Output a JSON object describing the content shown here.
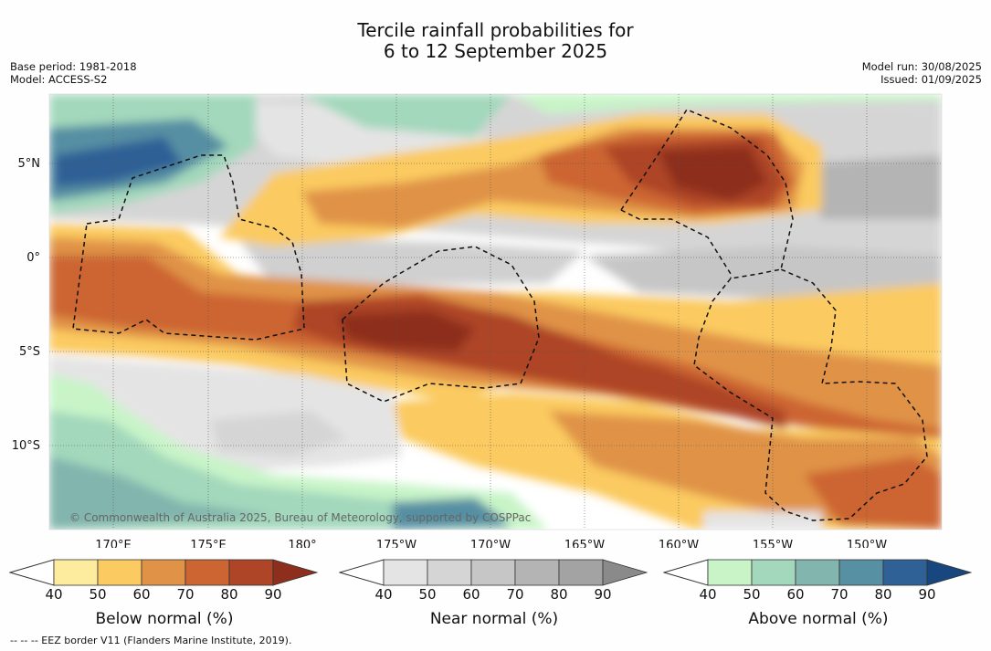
{
  "title": {
    "line1": "Tercile rainfall probabilities for",
    "line2": "6 to 12 September 2025"
  },
  "meta_left": {
    "base_period": "Base period: 1981-2018",
    "model": "Model: ACCESS-S2"
  },
  "meta_right": {
    "model_run": "Model run: 30/08/2025",
    "issued": "Issued: 01/09/2025"
  },
  "map": {
    "lat_labels": [
      "5°N",
      "0°",
      "5°S",
      "10°S"
    ],
    "lon_labels": [
      "170°E",
      "175°E",
      "180°",
      "175°W",
      "170°W",
      "165°W",
      "160°W",
      "155°W",
      "150°W"
    ],
    "copyright": "© Commonwealth of Australia 2025, Bureau of Meteorology, supported by COSPPac",
    "lat_range": [
      -14,
      9
    ],
    "lon_range": [
      167,
      214.5
    ]
  },
  "legends": [
    {
      "title": "Below normal (%)",
      "ticks": [
        "40",
        "50",
        "60",
        "70",
        "80",
        "90"
      ],
      "colors": [
        "#fdeb9e",
        "#fbca60",
        "#e09346",
        "#cc6532",
        "#ad4526",
        "#8d2f1c"
      ]
    },
    {
      "title": "Near normal (%)",
      "ticks": [
        "40",
        "50",
        "60",
        "70",
        "80",
        "90"
      ],
      "colors": [
        "#e4e4e4",
        "#d5d5d5",
        "#c6c6c6",
        "#b4b4b4",
        "#a3a3a3",
        "#8a8a8a"
      ]
    },
    {
      "title": "Above normal (%)",
      "ticks": [
        "40",
        "50",
        "60",
        "70",
        "80",
        "90"
      ],
      "colors": [
        "#c8f4c8",
        "#a3d8bc",
        "#82b5ad",
        "#578fa3",
        "#2f6196",
        "#18477f"
      ]
    }
  ],
  "footer": "--  --  -- EEZ border V11 (Flanders Marine Institute, 2019)."
}
